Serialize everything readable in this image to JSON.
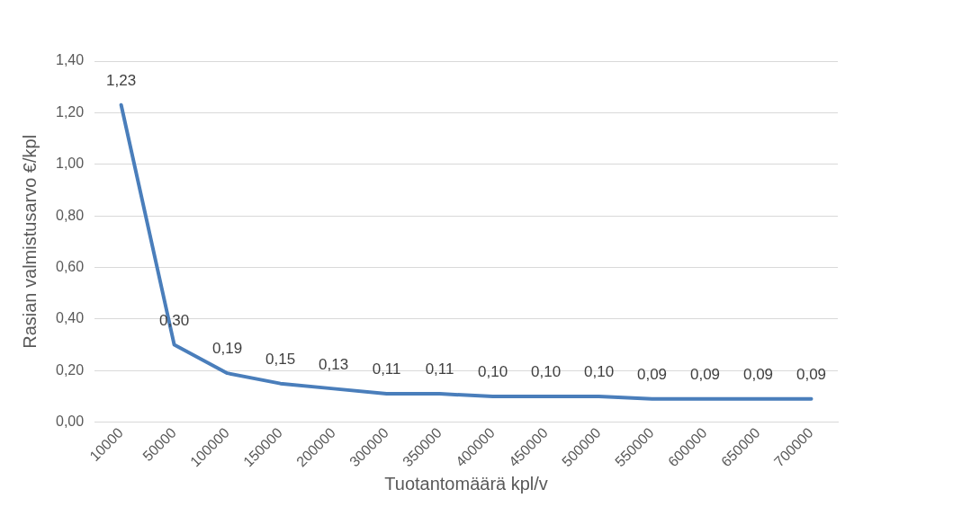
{
  "chart_data": {
    "type": "line",
    "xlabel": "Tuotantomäärä kpl/v",
    "ylabel": "Rasian valmistusarvo €/kpl",
    "categories": [
      "10000",
      "50000",
      "100000",
      "150000",
      "200000",
      "300000",
      "350000",
      "400000",
      "450000",
      "500000",
      "550000",
      "600000",
      "650000",
      "700000"
    ],
    "series": [
      {
        "color": "#4a7ebb",
        "values": [
          1.23,
          0.3,
          0.19,
          0.15,
          0.13,
          0.11,
          0.11,
          0.1,
          0.1,
          0.1,
          0.09,
          0.09,
          0.09,
          0.09
        ],
        "value_labels": [
          "1,23",
          "0,30",
          "0,19",
          "0,15",
          "0,13",
          "0,11",
          "0,11",
          "0,10",
          "0,10",
          "0,10",
          "0,09",
          "0,09",
          "0,09",
          "0,09"
        ]
      }
    ],
    "ylim": [
      0,
      1.4
    ],
    "yticks": [
      {
        "value": 0,
        "label": "0,00"
      },
      {
        "value": 0.2,
        "label": "0,20"
      },
      {
        "value": 0.4,
        "label": "0,40"
      },
      {
        "value": 0.6,
        "label": "0,60"
      },
      {
        "value": 0.8,
        "label": "0,80"
      },
      {
        "value": 1.0,
        "label": "1,00"
      },
      {
        "value": 1.2,
        "label": "1,20"
      },
      {
        "value": 1.4,
        "label": "1,40"
      }
    ],
    "grid": "y",
    "legend": false,
    "marker": "none",
    "line_style": "solid"
  }
}
